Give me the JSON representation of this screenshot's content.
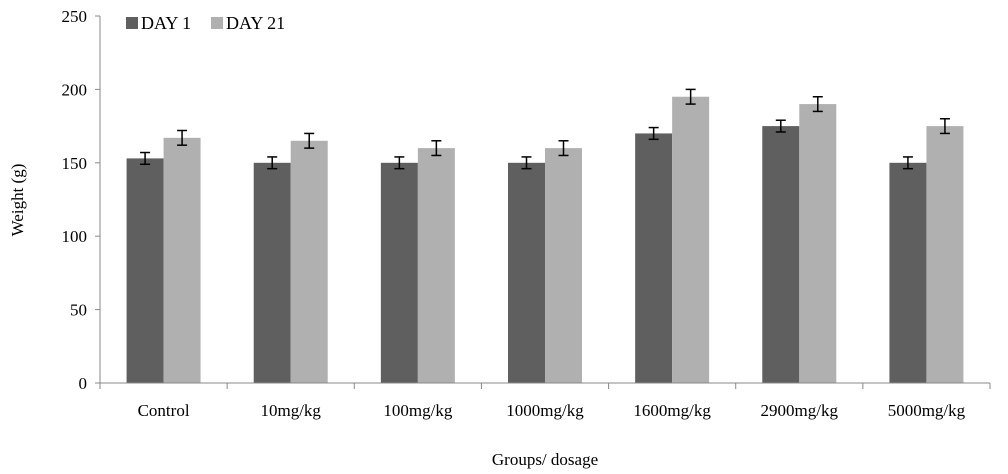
{
  "chart_data": {
    "type": "bar",
    "title": "",
    "xlabel": "Groups/ dosage",
    "ylabel": "Weight (g)",
    "ylim": [
      0,
      250
    ],
    "yticks": [
      0,
      50,
      100,
      150,
      200,
      250
    ],
    "grid": false,
    "legend_position": "top-left",
    "categories": [
      "Control",
      "10mg/kg",
      "100mg/kg",
      "1000mg/kg",
      "1600mg/kg",
      "2900mg/kg",
      "5000mg/kg"
    ],
    "series": [
      {
        "name": "DAY 1",
        "color": "#5f5f5f",
        "values": [
          153,
          150,
          150,
          150,
          170,
          175,
          150
        ],
        "errors": [
          4,
          4,
          4,
          4,
          4,
          4,
          4
        ]
      },
      {
        "name": "DAY 21",
        "color": "#b0b0b0",
        "values": [
          167,
          165,
          160,
          160,
          195,
          190,
          175
        ],
        "errors": [
          5,
          5,
          5,
          5,
          5,
          5,
          5
        ]
      }
    ]
  }
}
